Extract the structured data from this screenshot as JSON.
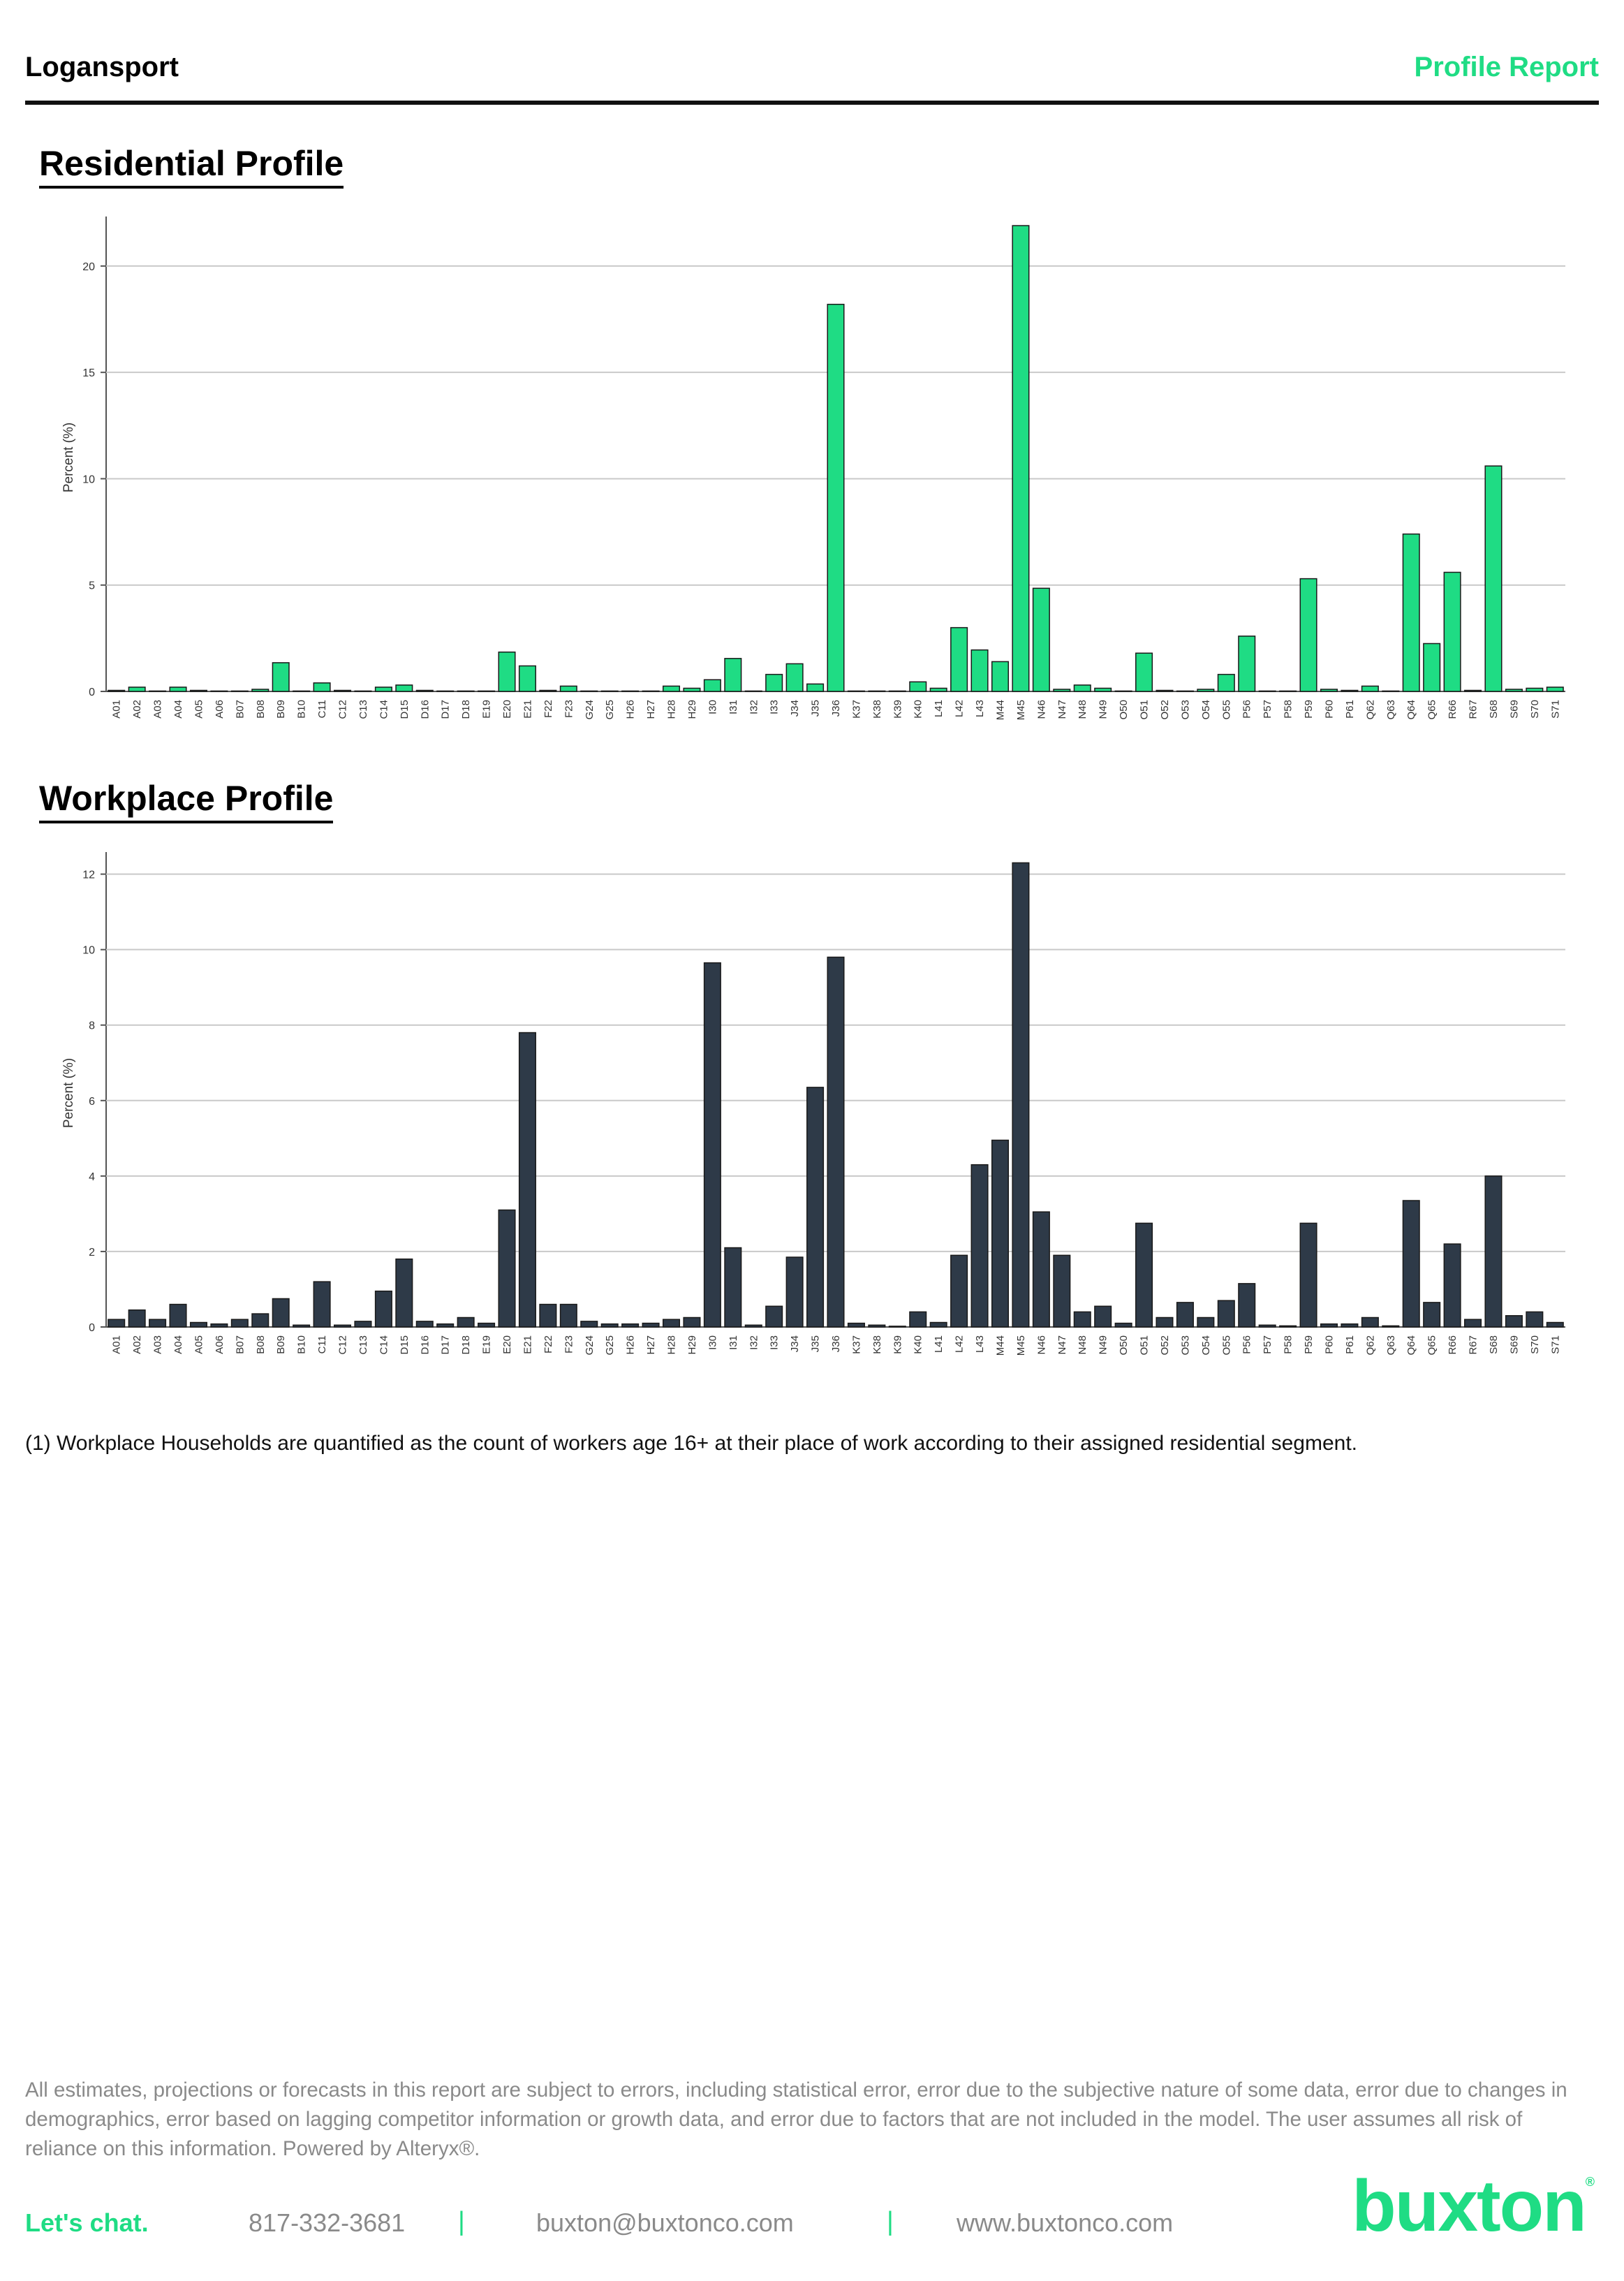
{
  "header": {
    "title": "Logansport",
    "report_label": "Profile Report"
  },
  "colors": {
    "residential_bar": "#1fdc84",
    "workplace_bar": "#2e3a48",
    "accent": "#1fdc84"
  },
  "chart_data": [
    {
      "type": "bar",
      "title": "Residential Profile",
      "ylabel": "Percent (%)",
      "ylim": [
        0,
        22
      ],
      "yticks": [
        0,
        5,
        10,
        15,
        20
      ],
      "grid": true,
      "categories": [
        "A01",
        "A02",
        "A03",
        "A04",
        "A05",
        "A06",
        "B07",
        "B08",
        "B09",
        "B10",
        "C11",
        "C12",
        "C13",
        "C14",
        "D15",
        "D16",
        "D17",
        "D18",
        "E19",
        "E20",
        "E21",
        "F22",
        "F23",
        "G24",
        "G25",
        "H26",
        "H27",
        "H28",
        "H29",
        "I30",
        "I31",
        "I32",
        "I33",
        "J34",
        "J35",
        "J36",
        "K37",
        "K38",
        "K39",
        "K40",
        "L41",
        "L42",
        "L43",
        "M44",
        "M45",
        "N46",
        "N47",
        "N48",
        "N49",
        "O50",
        "O51",
        "O52",
        "O53",
        "O54",
        "O55",
        "P56",
        "P57",
        "P58",
        "P59",
        "P60",
        "P61",
        "Q62",
        "Q63",
        "Q64",
        "Q65",
        "R66",
        "R67",
        "S68",
        "S69",
        "S70",
        "S71"
      ],
      "values": [
        0.05,
        0.2,
        0.02,
        0.2,
        0.05,
        0.02,
        0.02,
        0.1,
        1.35,
        0.02,
        0.4,
        0.05,
        0.02,
        0.2,
        0.3,
        0.05,
        0.02,
        0.02,
        0.02,
        1.85,
        1.2,
        0.05,
        0.25,
        0.02,
        0.02,
        0.02,
        0.02,
        0.25,
        0.15,
        0.55,
        1.55,
        0.02,
        0.8,
        1.3,
        0.35,
        18.2,
        0.02,
        0.02,
        0.02,
        0.45,
        0.15,
        3.0,
        1.95,
        1.4,
        21.9,
        4.85,
        0.1,
        0.3,
        0.15,
        0.02,
        1.8,
        0.05,
        0.02,
        0.1,
        0.8,
        2.6,
        0.02,
        0.02,
        5.3,
        0.1,
        0.05,
        0.25,
        0.02,
        7.4,
        2.25,
        5.6,
        0.05,
        10.6,
        0.1,
        0.15,
        0.2
      ]
    },
    {
      "type": "bar",
      "title": "Workplace Profile",
      "ylabel": "Percent (%)",
      "ylim": [
        0,
        12.4
      ],
      "yticks": [
        0,
        2,
        4,
        6,
        8,
        10,
        12
      ],
      "grid": true,
      "categories": [
        "A01",
        "A02",
        "A03",
        "A04",
        "A05",
        "A06",
        "B07",
        "B08",
        "B09",
        "B10",
        "C11",
        "C12",
        "C13",
        "C14",
        "D15",
        "D16",
        "D17",
        "D18",
        "E19",
        "E20",
        "E21",
        "F22",
        "F23",
        "G24",
        "G25",
        "H26",
        "H27",
        "H28",
        "H29",
        "I30",
        "I31",
        "I32",
        "I33",
        "J34",
        "J35",
        "J36",
        "K37",
        "K38",
        "K39",
        "K40",
        "L41",
        "L42",
        "L43",
        "M44",
        "M45",
        "N46",
        "N47",
        "N48",
        "N49",
        "O50",
        "O51",
        "O52",
        "O53",
        "O54",
        "O55",
        "P56",
        "P57",
        "P58",
        "P59",
        "P60",
        "P61",
        "Q62",
        "Q63",
        "Q64",
        "Q65",
        "R66",
        "R67",
        "S68",
        "S69",
        "S70",
        "S71"
      ],
      "values": [
        0.2,
        0.45,
        0.2,
        0.6,
        0.12,
        0.08,
        0.2,
        0.35,
        0.75,
        0.05,
        1.2,
        0.05,
        0.15,
        0.95,
        1.8,
        0.15,
        0.08,
        0.25,
        0.1,
        3.1,
        7.8,
        0.6,
        0.6,
        0.15,
        0.08,
        0.08,
        0.1,
        0.2,
        0.25,
        9.65,
        2.1,
        0.05,
        0.55,
        1.85,
        6.35,
        9.8,
        0.1,
        0.05,
        0.02,
        0.4,
        0.12,
        1.9,
        4.3,
        4.95,
        12.3,
        3.05,
        1.9,
        0.4,
        0.55,
        0.1,
        2.75,
        0.25,
        0.65,
        0.25,
        0.7,
        1.15,
        0.05,
        0.03,
        2.75,
        0.08,
        0.08,
        0.25,
        0.03,
        3.35,
        0.65,
        2.2,
        0.2,
        4.0,
        0.3,
        0.4,
        0.12
      ]
    }
  ],
  "footnote": "(1) Workplace Households are quantified as the count of workers age 16+ at their place of work according to their assigned residential segment.",
  "disclaimer": "All estimates, projections or forecasts in this report are subject to errors, including statistical error, error due to the subjective nature of some data, error due to changes in demographics, error based on lagging competitor information or growth data, and error due to factors that are not included in the model. The user assumes all risk of reliance on this information. Powered by Alteryx®.",
  "footer": {
    "cta": "Let's chat.",
    "phone": "817-332-3681",
    "separator": "|",
    "email": "buxton@buxtonco.com",
    "website": "www.buxtonco.com",
    "logo_text": "buxton",
    "logo_mark": "®"
  }
}
